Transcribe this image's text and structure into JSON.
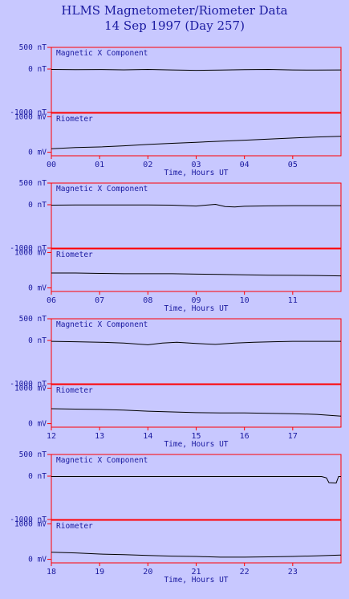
{
  "title": "HLMS Magnetometer/Riometer Data",
  "subtitle": "14 Sep 1997 (Day 257)",
  "colors": {
    "background": "#c8c8ff",
    "frame": "#ff0000",
    "text": "#1a1aa0",
    "trace": "#000000"
  },
  "chart_data": [
    {
      "type": "line",
      "panel": "00-06 UT",
      "title": "Magnetic X Component",
      "ylabels": [
        "500 nT",
        "0 nT",
        "-1000 nT"
      ],
      "yticks": [
        500,
        0,
        -1000
      ],
      "ylim": [
        -1000,
        500
      ],
      "x": [
        0,
        0.5,
        1,
        1.5,
        2,
        2.5,
        3,
        3.5,
        4,
        4.5,
        5,
        5.5,
        6
      ],
      "y": [
        -10,
        -15,
        -12,
        -18,
        -10,
        -20,
        -30,
        -25,
        -15,
        -10,
        -20,
        -25,
        -20
      ],
      "xlabel": "Time, Hours UT",
      "xtick_labels": [
        "00",
        "01",
        "02",
        "03",
        "04",
        "05"
      ],
      "xticks": [
        0,
        1,
        2,
        3,
        4,
        5
      ],
      "xlim": [
        0,
        6
      ]
    },
    {
      "type": "line",
      "panel": "00-06 UT",
      "title": "Riometer",
      "ylabels": [
        "1000 mV",
        "0 mV"
      ],
      "yticks": [
        1000,
        0
      ],
      "ylim": [
        -100,
        1100
      ],
      "x": [
        0,
        0.5,
        1,
        1.5,
        2,
        2.5,
        3,
        3.5,
        4,
        4.5,
        5,
        5.5,
        6
      ],
      "y": [
        100,
        130,
        150,
        180,
        220,
        250,
        280,
        310,
        340,
        370,
        400,
        430,
        450
      ],
      "xlabel": "Time, Hours UT",
      "xtick_labels": [
        "00",
        "01",
        "02",
        "03",
        "04",
        "05"
      ],
      "xticks": [
        0,
        1,
        2,
        3,
        4,
        5
      ],
      "xlim": [
        0,
        6
      ]
    },
    {
      "type": "line",
      "panel": "06-12 UT",
      "title": "Magnetic X Component",
      "ylabels": [
        "500 nT",
        "0 nT",
        "-1000 nT"
      ],
      "yticks": [
        500,
        0,
        -1000
      ],
      "ylim": [
        -1000,
        500
      ],
      "x": [
        6,
        6.5,
        7,
        7.5,
        8,
        8.5,
        9,
        9.2,
        9.4,
        9.6,
        9.8,
        10,
        10.5,
        11,
        11.5,
        12
      ],
      "y": [
        -10,
        -5,
        -5,
        -5,
        -5,
        -10,
        -30,
        -10,
        10,
        -40,
        -50,
        -35,
        -25,
        -20,
        -20,
        -20
      ],
      "xlabel": "Time, Hours UT",
      "xtick_labels": [
        "06",
        "07",
        "08",
        "09",
        "10",
        "11"
      ],
      "xticks": [
        6,
        7,
        8,
        9,
        10,
        11
      ],
      "xlim": [
        6,
        12
      ]
    },
    {
      "type": "line",
      "panel": "06-12 UT",
      "title": "Riometer",
      "ylabels": [
        "1000 mV",
        "0 mV"
      ],
      "yticks": [
        1000,
        0
      ],
      "ylim": [
        -100,
        1100
      ],
      "x": [
        6,
        6.5,
        7,
        7.5,
        8,
        8.5,
        9,
        9.5,
        10,
        10.5,
        11,
        11.5,
        12
      ],
      "y": [
        420,
        420,
        410,
        400,
        400,
        400,
        390,
        380,
        370,
        360,
        355,
        350,
        340
      ],
      "xlabel": "Time, Hours UT",
      "xtick_labels": [
        "06",
        "07",
        "08",
        "09",
        "10",
        "11"
      ],
      "xticks": [
        6,
        7,
        8,
        9,
        10,
        11
      ],
      "xlim": [
        6,
        12
      ]
    },
    {
      "type": "line",
      "panel": "12-18 UT",
      "title": "Magnetic X Component",
      "ylabels": [
        "500 nT",
        "0 nT",
        "-1000 nT"
      ],
      "yticks": [
        500,
        0,
        -1000
      ],
      "ylim": [
        -1000,
        500
      ],
      "x": [
        12,
        12.5,
        13,
        13.5,
        14,
        14.3,
        14.6,
        15,
        15.4,
        15.8,
        16.2,
        16.6,
        17,
        17.5,
        18
      ],
      "y": [
        -20,
        -30,
        -40,
        -60,
        -100,
        -60,
        -40,
        -70,
        -90,
        -60,
        -40,
        -30,
        -20,
        -20,
        -20
      ],
      "xlabel": "Time, Hours UT",
      "xtick_labels": [
        "12",
        "13",
        "14",
        "15",
        "16",
        "17"
      ],
      "xticks": [
        12,
        13,
        14,
        15,
        16,
        17
      ],
      "xlim": [
        12,
        18
      ]
    },
    {
      "type": "line",
      "panel": "12-18 UT",
      "title": "Riometer",
      "ylabels": [
        "1000 mV",
        "0 mV"
      ],
      "yticks": [
        1000,
        0
      ],
      "ylim": [
        -100,
        1100
      ],
      "x": [
        12,
        12.5,
        13,
        13.5,
        14,
        14.5,
        15,
        15.5,
        16,
        16.5,
        17,
        17.5,
        18
      ],
      "y": [
        420,
        410,
        400,
        380,
        350,
        330,
        310,
        300,
        300,
        290,
        280,
        260,
        210
      ],
      "xlabel": "Time, Hours UT",
      "xtick_labels": [
        "12",
        "13",
        "14",
        "15",
        "16",
        "17"
      ],
      "xticks": [
        12,
        13,
        14,
        15,
        16,
        17
      ],
      "xlim": [
        12,
        18
      ]
    },
    {
      "type": "line",
      "panel": "18-24 UT",
      "title": "Magnetic X Component",
      "ylabels": [
        "500 nT",
        "0 nT",
        "-1000 nT"
      ],
      "yticks": [
        500,
        0,
        -1000
      ],
      "ylim": [
        -1000,
        500
      ],
      "x": [
        18,
        19,
        20,
        21,
        22,
        23,
        23.6,
        23.7,
        23.75,
        23.9,
        23.95,
        24
      ],
      "y": [
        -10,
        -10,
        -10,
        -10,
        -10,
        -10,
        -10,
        -40,
        -150,
        -160,
        -10,
        -10
      ],
      "xlabel": "Time, Hours UT",
      "xtick_labels": [
        "18",
        "19",
        "20",
        "21",
        "22",
        "23"
      ],
      "xticks": [
        18,
        19,
        20,
        21,
        22,
        23
      ],
      "xlim": [
        18,
        24
      ]
    },
    {
      "type": "line",
      "panel": "18-24 UT",
      "title": "Riometer",
      "ylabels": [
        "1000 mV",
        "0 mV"
      ],
      "yticks": [
        1000,
        0
      ],
      "ylim": [
        -100,
        1100
      ],
      "x": [
        18,
        18.5,
        19,
        19.5,
        20,
        20.5,
        21,
        21.5,
        22,
        22.5,
        23,
        23.5,
        24
      ],
      "y": [
        200,
        180,
        150,
        130,
        110,
        90,
        80,
        60,
        60,
        70,
        80,
        100,
        120
      ],
      "xlabel": "Time, Hours UT",
      "xtick_labels": [
        "18",
        "19",
        "20",
        "21",
        "22",
        "23"
      ],
      "xticks": [
        18,
        19,
        20,
        21,
        22,
        23
      ],
      "xlim": [
        18,
        24
      ]
    }
  ]
}
